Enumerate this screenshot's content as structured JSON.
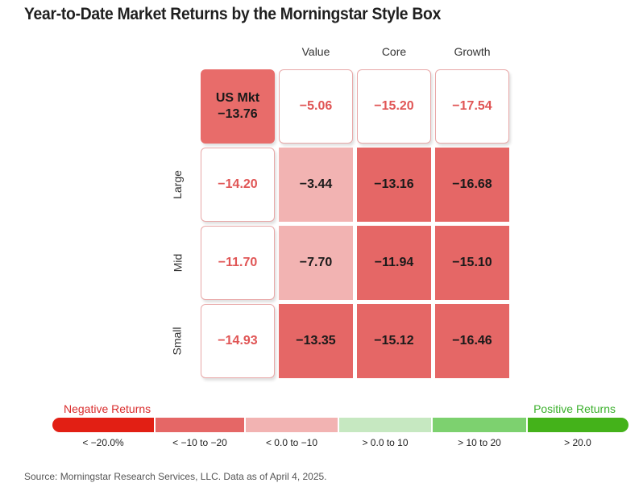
{
  "title": "Year-to-Date Market Returns by the Morningstar Style Box",
  "colors": {
    "strong": "#e56766",
    "light": "#f2b3b2",
    "usmkt": "#e86c6a",
    "outline_text": "#e05555",
    "filled_text": "#1a1a1a",
    "neg_label": "#d92b2b",
    "pos_label": "#3ab02b"
  },
  "chart_data": {
    "type": "heatmap",
    "columns": [
      "Value",
      "Core",
      "Growth"
    ],
    "rows": [
      "Large",
      "Mid",
      "Small"
    ],
    "us_market": {
      "label": "US Mkt",
      "value": "−13.76"
    },
    "column_totals": [
      "−5.06",
      "−15.20",
      "−17.54"
    ],
    "row_totals": [
      "−14.20",
      "−11.70",
      "−14.93"
    ],
    "values": [
      [
        "−3.44",
        "−13.16",
        "−16.68"
      ],
      [
        "−7.70",
        "−11.94",
        "−15.10"
      ],
      [
        "−13.35",
        "−15.12",
        "−16.46"
      ]
    ]
  },
  "legend": {
    "negative_label": "Negative Returns",
    "positive_label": "Positive Returns",
    "segments": [
      {
        "range": "< −20.0%",
        "color": "#e21f14"
      },
      {
        "range": "< −10 to −20",
        "color": "#e56766"
      },
      {
        "range": "< 0.0 to −10",
        "color": "#f2b3b2"
      },
      {
        "range": "> 0.0 to 10",
        "color": "#c6e8c1"
      },
      {
        "range": "> 10 to 20",
        "color": "#7dd16f"
      },
      {
        "range": "> 20.0",
        "color": "#44b21a"
      }
    ]
  },
  "source": "Source: Morningstar Research Services, LLC. Data as of April 4, 2025."
}
